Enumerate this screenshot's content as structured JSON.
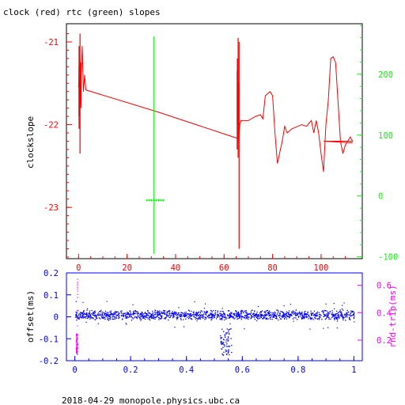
{
  "chart_data": [
    {
      "type": "line",
      "title": "clock (red) rtc (green) slopes",
      "xlabel": "",
      "ylabel": "clockslope",
      "xlim": [
        -5,
        117
      ],
      "ylim": [
        -23.62,
        -20.78
      ],
      "y2lim": [
        -103,
        283
      ],
      "x_ticks": [
        0,
        20,
        40,
        60,
        80,
        100
      ],
      "y_ticks": [
        -21,
        -22,
        -23
      ],
      "y2_ticks": [
        200,
        100,
        0,
        -100
      ],
      "grid": false,
      "colors": {
        "frame": "#000000",
        "clock": "#ff0000",
        "rtc": "#00ff00",
        "x_ticks": "#ff0000"
      },
      "series": [
        {
          "name": "clock",
          "axis": "left",
          "values": [
            [
              0.0,
              -21.55
            ],
            [
              0.5,
              -21.2
            ],
            [
              1.0,
              -21.45
            ],
            [
              1.5,
              -21.05
            ],
            [
              2.0,
              -21.6
            ],
            [
              2.5,
              -21.4
            ],
            [
              3.0,
              -21.58
            ],
            [
              33.0,
              -21.85
            ],
            [
              66.0,
              -22.17
            ],
            [
              66.5,
              -22.0
            ],
            [
              67.0,
              -21.95
            ],
            [
              70.0,
              -21.95
            ],
            [
              73.0,
              -21.9
            ],
            [
              75.0,
              -21.88
            ],
            [
              76.0,
              -21.93
            ],
            [
              77.0,
              -21.65
            ],
            [
              79.0,
              -21.6
            ],
            [
              80.0,
              -21.65
            ],
            [
              81.0,
              -22.1
            ],
            [
              82.0,
              -22.47
            ],
            [
              84.0,
              -22.2
            ],
            [
              85.0,
              -22.02
            ],
            [
              86.0,
              -22.1
            ],
            [
              88.0,
              -22.05
            ],
            [
              92.0,
              -22.0
            ],
            [
              94.0,
              -22.02
            ],
            [
              96.0,
              -21.95
            ],
            [
              97.0,
              -22.1
            ],
            [
              98.0,
              -21.95
            ],
            [
              99.0,
              -22.1
            ],
            [
              100.0,
              -22.35
            ],
            [
              101.0,
              -22.57
            ],
            [
              102.0,
              -22.0
            ],
            [
              103.0,
              -21.7
            ],
            [
              104.0,
              -21.2
            ],
            [
              105.0,
              -21.18
            ],
            [
              106.0,
              -21.25
            ],
            [
              108.0,
              -22.2
            ],
            [
              109.0,
              -22.35
            ],
            [
              110.0,
              -22.25
            ],
            [
              112.0,
              -22.15
            ],
            [
              113.0,
              -22.2
            ],
            [
              101.0,
              -22.2
            ],
            [
              113.0,
              -22.22
            ]
          ]
        },
        {
          "name": "clock_spikes",
          "axis": "left",
          "segments": [
            [
              0.2,
              -21.05,
              -22.05
            ],
            [
              0.6,
              -20.9,
              -22.35
            ],
            [
              1.0,
              -21.4,
              -21.75
            ],
            [
              65.4,
              -21.35,
              -22.3
            ],
            [
              65.8,
              -20.95,
              -22.4
            ],
            [
              66.2,
              -21.0,
              -23.5
            ]
          ]
        },
        {
          "name": "rtc",
          "axis": "right",
          "values": [
            [
              31.0,
              -95
            ],
            [
              31.0,
              262
            ]
          ],
          "cross": [
            28.0,
            35.0,
            -7
          ]
        }
      ]
    },
    {
      "type": "scatter",
      "xlabel": "",
      "ylabel": "offset(ms)",
      "y2label": "rnd-trip(ms)",
      "xlim": [
        -0.03,
        1.03
      ],
      "ylim": [
        -0.2,
        0.2
      ],
      "y2lim": [
        0.05,
        0.69
      ],
      "x_ticks": [
        0,
        0.2,
        0.4,
        0.6,
        0.8,
        1
      ],
      "y_ticks": [
        0.2,
        0.1,
        0,
        -0.1,
        -0.2
      ],
      "y2_ticks": [
        0.6,
        0.4,
        0.2
      ],
      "grid": false,
      "colors": {
        "frame": "#0000ff",
        "offset": "#0000ff",
        "rnd_trip": "#ff00ff",
        "x_ticks": "#0000ff",
        "y2_ticks": "#ff00ff"
      },
      "series": [
        {
          "name": "offset",
          "axis": "left",
          "band": {
            "x": [
              0,
              1
            ],
            "center": 0.01,
            "spread": 0.025
          },
          "dip": {
            "x": [
              0.52,
              0.56
            ],
            "y": [
              -0.05,
              -0.175
            ]
          }
        },
        {
          "name": "rnd_trip",
          "axis": "right",
          "x": 0.005,
          "y_range": [
            0.1,
            0.25
          ],
          "spike": [
            0.3,
            0.65
          ]
        }
      ]
    }
  ],
  "footer": "2018-04-29 monopole.physics.ubc.ca"
}
